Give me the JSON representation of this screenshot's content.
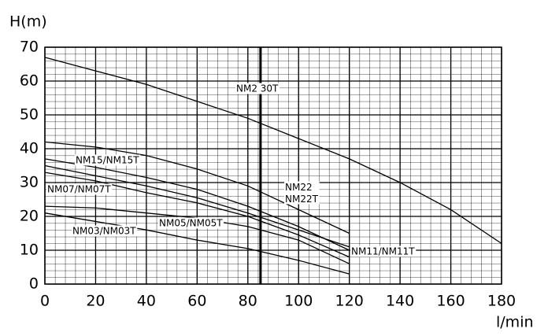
{
  "chart_data": {
    "type": "line",
    "x_label": "l/min",
    "y_label": "H(m)",
    "xlim": [
      0,
      180
    ],
    "ylim": [
      0,
      70
    ],
    "xticks": [
      0,
      20,
      40,
      60,
      80,
      100,
      120,
      140,
      160,
      180
    ],
    "yticks": [
      0,
      10,
      20,
      30,
      40,
      50,
      60,
      70
    ],
    "grid": true,
    "vlines": [
      85
    ],
    "series": [
      {
        "name": "NM2  30T",
        "color": "#000000",
        "x": [
          0,
          20,
          40,
          60,
          80,
          100,
          120,
          140,
          160,
          180
        ],
        "values": [
          67,
          63,
          59,
          54,
          49,
          43,
          37,
          30,
          22,
          12
        ]
      },
      {
        "name": "NM22\nNM22T",
        "color": "#000000",
        "x": [
          0,
          20,
          40,
          60,
          80,
          100,
          120
        ],
        "values": [
          42,
          40.5,
          38,
          34,
          29,
          22,
          15
        ]
      },
      {
        "name": "NM15/NM15T",
        "color": "#000000",
        "x": [
          0,
          20,
          40,
          60,
          80,
          100,
          120
        ],
        "values": [
          37,
          34.5,
          31.5,
          28,
          23,
          17,
          10
        ]
      },
      {
        "name": "NM11/NM11T",
        "color": "#000000",
        "x": [
          0,
          20,
          40,
          60,
          80,
          100,
          120
        ],
        "values": [
          35,
          32,
          29,
          25.5,
          21,
          16,
          11
        ]
      },
      {
        "name": "NM07/NM07T",
        "color": "#000000",
        "x": [
          0,
          20,
          40,
          60,
          80,
          100,
          120
        ],
        "values": [
          33,
          30.5,
          27,
          24,
          20,
          14.5,
          8
        ]
      },
      {
        "name": "NM05/NM05T",
        "color": "#000000",
        "x": [
          0,
          20,
          40,
          60,
          80,
          100,
          120
        ],
        "values": [
          23,
          22.5,
          21,
          19.5,
          17,
          13,
          6
        ]
      },
      {
        "name": "NM03/NM03T",
        "color": "#000000",
        "x": [
          0,
          20,
          40,
          60,
          80,
          100,
          120
        ],
        "values": [
          21,
          18.5,
          16,
          13,
          10.5,
          7,
          3
        ]
      }
    ]
  }
}
